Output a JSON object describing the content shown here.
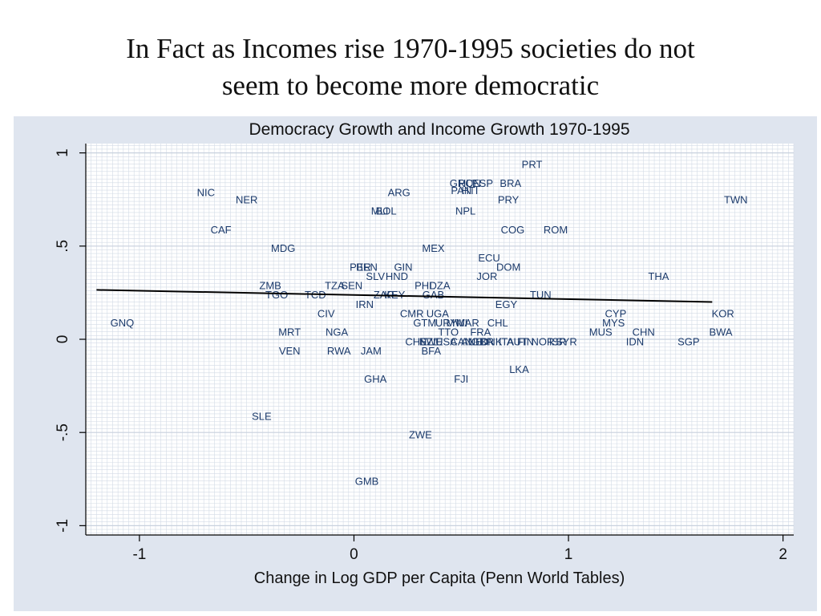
{
  "slide": {
    "title_line1": "In Fact as Incomes rise 1970-1995 societies do not",
    "title_line2": "seem to become more democratic"
  },
  "colors": {
    "panel_background": "#dfe5ef",
    "plot_background": "#ffffff",
    "grid": "#d3dbe6",
    "point_label": "#1b3a6b",
    "fit_line": "#000000"
  },
  "chart_data": {
    "type": "scatter",
    "title": "Democracy Growth and Income Growth 1970-1995",
    "xlabel": "Change in Log GDP per Capita (Penn World Tables)",
    "ylabel": "",
    "xlim": [
      -1.25,
      2.05
    ],
    "ylim": [
      -1.05,
      1.05
    ],
    "xticks": [
      {
        "value": -1,
        "label": "-1"
      },
      {
        "value": 0,
        "label": "0"
      },
      {
        "value": 1,
        "label": "1"
      },
      {
        "value": 2,
        "label": "2"
      }
    ],
    "yticks": [
      {
        "value": -1,
        "label": "-1"
      },
      {
        "value": -0.5,
        "label": "-.5"
      },
      {
        "value": 0,
        "label": "0"
      },
      {
        "value": 0.5,
        "label": ".5"
      },
      {
        "value": 1,
        "label": "1"
      }
    ],
    "grid": true,
    "fit_line": {
      "x": [
        -1.2,
        1.67
      ],
      "y": [
        0.265,
        0.2
      ]
    },
    "points": [
      {
        "label": "PRT",
        "x": 0.83,
        "y": 0.94
      },
      {
        "label": "GRC",
        "x": 0.5,
        "y": 0.84
      },
      {
        "label": "ESP",
        "x": 0.6,
        "y": 0.84
      },
      {
        "label": "HUN",
        "x": 0.54,
        "y": 0.84
      },
      {
        "label": "BRA",
        "x": 0.73,
        "y": 0.84
      },
      {
        "label": "PAN",
        "x": 0.5,
        "y": 0.8
      },
      {
        "label": "HTI",
        "x": 0.54,
        "y": 0.8
      },
      {
        "label": "NIC",
        "x": -0.69,
        "y": 0.79
      },
      {
        "label": "ARG",
        "x": 0.21,
        "y": 0.79
      },
      {
        "label": "NER",
        "x": -0.5,
        "y": 0.75
      },
      {
        "label": "TWN",
        "x": 1.78,
        "y": 0.75
      },
      {
        "label": "PRY",
        "x": 0.72,
        "y": 0.75
      },
      {
        "label": "MLI",
        "x": 0.12,
        "y": 0.69
      },
      {
        "label": "BOL",
        "x": 0.15,
        "y": 0.69
      },
      {
        "label": "NPL",
        "x": 0.52,
        "y": 0.69
      },
      {
        "label": "CAF",
        "x": -0.62,
        "y": 0.59
      },
      {
        "label": "COG",
        "x": 0.74,
        "y": 0.59
      },
      {
        "label": "ROM",
        "x": 0.94,
        "y": 0.59
      },
      {
        "label": "MDG",
        "x": -0.33,
        "y": 0.49
      },
      {
        "label": "MEX",
        "x": 0.37,
        "y": 0.49
      },
      {
        "label": "ECU",
        "x": 0.63,
        "y": 0.44
      },
      {
        "label": "PER",
        "x": 0.03,
        "y": 0.39
      },
      {
        "label": "BEN",
        "x": 0.06,
        "y": 0.39
      },
      {
        "label": "GIN",
        "x": 0.23,
        "y": 0.39
      },
      {
        "label": "DOM",
        "x": 0.72,
        "y": 0.39
      },
      {
        "label": "SLV",
        "x": 0.1,
        "y": 0.34
      },
      {
        "label": "HND",
        "x": 0.2,
        "y": 0.34
      },
      {
        "label": "JOR",
        "x": 0.62,
        "y": 0.34
      },
      {
        "label": "THA",
        "x": 1.42,
        "y": 0.34
      },
      {
        "label": "ZMB",
        "x": -0.39,
        "y": 0.29
      },
      {
        "label": "TZA",
        "x": -0.09,
        "y": 0.29
      },
      {
        "label": "SEN",
        "x": -0.01,
        "y": 0.29
      },
      {
        "label": "PHL",
        "x": 0.33,
        "y": 0.29
      },
      {
        "label": "DZA",
        "x": 0.4,
        "y": 0.29
      },
      {
        "label": "TGO",
        "x": -0.36,
        "y": 0.24
      },
      {
        "label": "TCD",
        "x": -0.18,
        "y": 0.24
      },
      {
        "label": "ZAR",
        "x": 0.14,
        "y": 0.24
      },
      {
        "label": "KEY",
        "x": 0.19,
        "y": 0.24
      },
      {
        "label": "GAB",
        "x": 0.37,
        "y": 0.24
      },
      {
        "label": "TUN",
        "x": 0.87,
        "y": 0.24
      },
      {
        "label": "IRN",
        "x": 0.05,
        "y": 0.19
      },
      {
        "label": "EGY",
        "x": 0.71,
        "y": 0.19
      },
      {
        "label": "CIV",
        "x": -0.13,
        "y": 0.14
      },
      {
        "label": "CMR",
        "x": 0.27,
        "y": 0.14
      },
      {
        "label": "UGA",
        "x": 0.39,
        "y": 0.14
      },
      {
        "label": "CYP",
        "x": 1.22,
        "y": 0.14
      },
      {
        "label": "KOR",
        "x": 1.72,
        "y": 0.14
      },
      {
        "label": "GNQ",
        "x": -1.08,
        "y": 0.09
      },
      {
        "label": "GTM",
        "x": 0.33,
        "y": 0.09
      },
      {
        "label": "URY",
        "x": 0.43,
        "y": 0.09
      },
      {
        "label": "MWI",
        "x": 0.48,
        "y": 0.09
      },
      {
        "label": "MAR",
        "x": 0.53,
        "y": 0.09
      },
      {
        "label": "CHL",
        "x": 0.67,
        "y": 0.09
      },
      {
        "label": "MYS",
        "x": 1.21,
        "y": 0.09
      },
      {
        "label": "MRT",
        "x": -0.3,
        "y": 0.04
      },
      {
        "label": "NGA",
        "x": -0.08,
        "y": 0.04
      },
      {
        "label": "TTO",
        "x": 0.44,
        "y": 0.04
      },
      {
        "label": "FRA",
        "x": 0.59,
        "y": 0.04
      },
      {
        "label": "MUS",
        "x": 1.15,
        "y": 0.04
      },
      {
        "label": "CHN",
        "x": 1.35,
        "y": 0.04
      },
      {
        "label": "BWA",
        "x": 1.71,
        "y": 0.04
      },
      {
        "label": "CHE",
        "x": 0.29,
        "y": -0.01
      },
      {
        "label": "SWE",
        "x": 0.36,
        "y": -0.01
      },
      {
        "label": "NZL",
        "x": 0.35,
        "y": -0.01
      },
      {
        "label": "USA",
        "x": 0.43,
        "y": -0.01
      },
      {
        "label": "CAN",
        "x": 0.5,
        "y": -0.01
      },
      {
        "label": "AUS",
        "x": 0.55,
        "y": -0.01
      },
      {
        "label": "NLD",
        "x": 0.58,
        "y": -0.01
      },
      {
        "label": "GBR",
        "x": 0.6,
        "y": -0.01
      },
      {
        "label": "DNK",
        "x": 0.64,
        "y": -0.01
      },
      {
        "label": "ITA",
        "x": 0.71,
        "y": -0.01
      },
      {
        "label": "AUT",
        "x": 0.76,
        "y": -0.01
      },
      {
        "label": "FIN",
        "x": 0.8,
        "y": -0.01
      },
      {
        "label": "NOR",
        "x": 0.88,
        "y": -0.01
      },
      {
        "label": "ISR",
        "x": 0.95,
        "y": -0.01
      },
      {
        "label": "SYR",
        "x": 0.99,
        "y": -0.01
      },
      {
        "label": "IDN",
        "x": 1.31,
        "y": -0.01
      },
      {
        "label": "SGP",
        "x": 1.56,
        "y": -0.01
      },
      {
        "label": "VEN",
        "x": -0.3,
        "y": -0.06
      },
      {
        "label": "RWA",
        "x": -0.07,
        "y": -0.06
      },
      {
        "label": "JAM",
        "x": 0.08,
        "y": -0.06
      },
      {
        "label": "BFA",
        "x": 0.36,
        "y": -0.06
      },
      {
        "label": "LKA",
        "x": 0.77,
        "y": -0.16
      },
      {
        "label": "GHA",
        "x": 0.1,
        "y": -0.21
      },
      {
        "label": "FJI",
        "x": 0.5,
        "y": -0.21
      },
      {
        "label": "SLE",
        "x": -0.43,
        "y": -0.41
      },
      {
        "label": "ZWE",
        "x": 0.31,
        "y": -0.51
      },
      {
        "label": "GMB",
        "x": 0.06,
        "y": -0.76
      }
    ]
  }
}
